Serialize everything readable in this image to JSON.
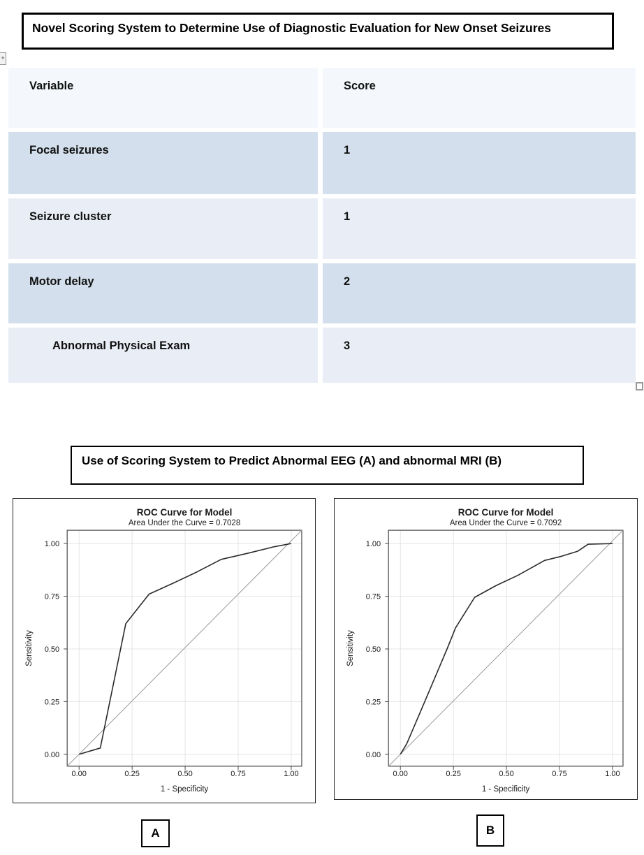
{
  "titles": {
    "table_title": "Novel Scoring System to Determine Use of Diagnostic Evaluation for New Onset Seizures",
    "figure_title": "Use of Scoring System to Predict Abnormal EEG (A) and abnormal MRI (B)"
  },
  "table": {
    "headers": [
      "Variable",
      "Score"
    ],
    "rows": [
      {
        "variable": "Focal seizures",
        "score": "1",
        "indent": false
      },
      {
        "variable": "Seizure cluster",
        "score": "1",
        "indent": false
      },
      {
        "variable": "Motor delay",
        "score": "2",
        "indent": false
      },
      {
        "variable": "Abnormal Physical Exam",
        "score": "3",
        "indent": true
      }
    ],
    "colors": {
      "header_bg": "#f4f8fc",
      "row_dark": "#d3dfec",
      "row_light": "#e9eef6"
    }
  },
  "icons": {
    "left_edge_glyph": "+",
    "bottom_right_handle": ""
  },
  "figure_labels": {
    "a": "A",
    "b": "B"
  },
  "plot_style": {
    "curve_color": "#2b2b2b",
    "reference_color": "#9b9b9b",
    "grid_color": "#e4e4e4",
    "frame_color": "#4a4a4a",
    "text_color": "#1a1a1a"
  },
  "chart_data": [
    {
      "type": "line",
      "panel_label": "A",
      "title": "ROC Curve for Model",
      "subtitle": "Area Under the Curve = 0.7028",
      "auc": 0.7028,
      "xlabel": "1 - Specificity",
      "ylabel": "Sensitivity",
      "xlim": [
        0,
        1
      ],
      "ylim": [
        0,
        1
      ],
      "xticks": [
        0.0,
        0.25,
        0.5,
        0.75,
        1.0
      ],
      "yticks": [
        0.0,
        0.25,
        0.5,
        0.75,
        1.0
      ],
      "tick_labels": [
        "0.00",
        "0.25",
        "0.50",
        "0.75",
        "1.00"
      ],
      "grid": true,
      "reference_line": "diagonal",
      "series": [
        {
          "name": "ROC curve",
          "points": [
            [
              0,
              0
            ],
            [
              0.1,
              0.03
            ],
            [
              0.22,
              0.62
            ],
            [
              0.33,
              0.76
            ],
            [
              0.45,
              0.815
            ],
            [
              0.555,
              0.865
            ],
            [
              0.67,
              0.925
            ],
            [
              0.8,
              0.955
            ],
            [
              0.92,
              0.985
            ],
            [
              1,
              1
            ]
          ]
        }
      ]
    },
    {
      "type": "line",
      "panel_label": "B",
      "title": "ROC Curve for Model",
      "subtitle": "Area Under the Curve = 0.7092",
      "auc": 0.7092,
      "xlabel": "1 - Specificity",
      "ylabel": "Sensitivity",
      "xlim": [
        0,
        1
      ],
      "ylim": [
        0,
        1
      ],
      "xticks": [
        0.0,
        0.25,
        0.5,
        0.75,
        1.0
      ],
      "yticks": [
        0.0,
        0.25,
        0.5,
        0.75,
        1.0
      ],
      "tick_labels": [
        "0.00",
        "0.25",
        "0.50",
        "0.75",
        "1.00"
      ],
      "grid": true,
      "reference_line": "diagonal",
      "series": [
        {
          "name": "ROC curve",
          "points": [
            [
              0,
              0
            ],
            [
              0.03,
              0.05
            ],
            [
              0.115,
              0.25
            ],
            [
              0.22,
              0.5
            ],
            [
              0.26,
              0.6
            ],
            [
              0.35,
              0.745
            ],
            [
              0.45,
              0.8
            ],
            [
              0.555,
              0.85
            ],
            [
              0.68,
              0.92
            ],
            [
              0.76,
              0.94
            ],
            [
              0.835,
              0.963
            ],
            [
              0.885,
              0.997
            ],
            [
              1,
              1
            ]
          ]
        }
      ]
    }
  ]
}
